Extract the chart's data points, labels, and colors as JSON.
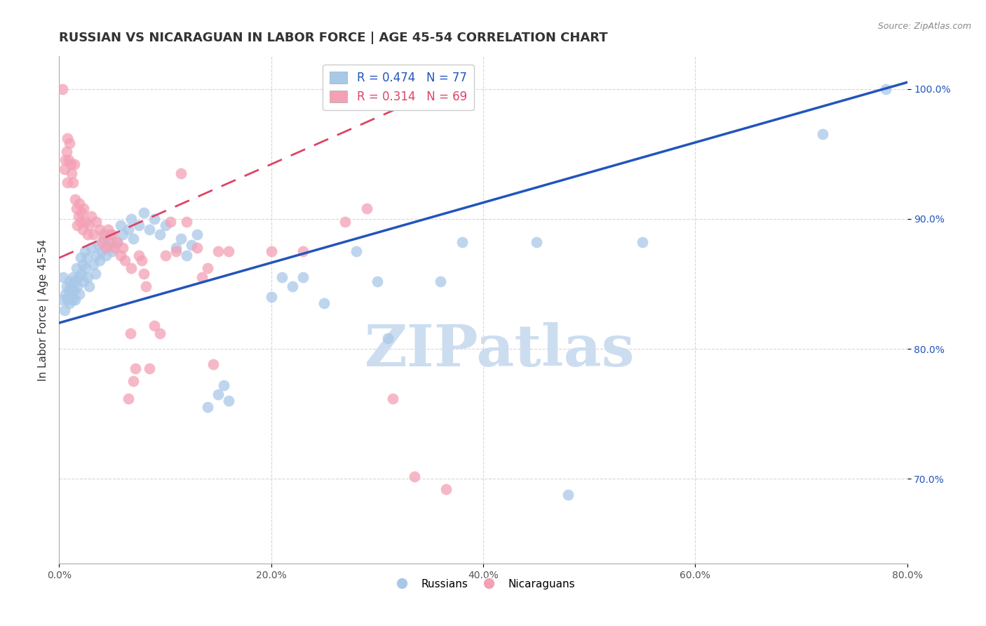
{
  "title": "RUSSIAN VS NICARAGUAN IN LABOR FORCE | AGE 45-54 CORRELATION CHART",
  "source": "Source: ZipAtlas.com",
  "ylabel": "In Labor Force | Age 45-54",
  "xlim": [
    0.0,
    0.8
  ],
  "ylim": [
    0.635,
    1.025
  ],
  "ytick_labels": [
    "70.0%",
    "80.0%",
    "90.0%",
    "100.0%"
  ],
  "ytick_values": [
    0.7,
    0.8,
    0.9,
    1.0
  ],
  "xtick_labels": [
    "0.0%",
    "20.0%",
    "40.0%",
    "60.0%",
    "80.0%"
  ],
  "xtick_values": [
    0.0,
    0.2,
    0.4,
    0.6,
    0.8
  ],
  "russian_color": "#a8c8e8",
  "nicaraguan_color": "#f4a0b5",
  "russian_line_color": "#2255bb",
  "nicaraguan_line_color": "#dd4466",
  "watermark_text": "ZIPatlas",
  "background_color": "#ffffff",
  "grid_color": "#cccccc",
  "title_fontsize": 13,
  "axis_label_fontsize": 11,
  "tick_fontsize": 10,
  "legend_fontsize": 12,
  "watermark_color": "#ccddf0",
  "watermark_fontsize": 60,
  "russian_R": "0.474",
  "russian_N": "77",
  "nicaraguan_R": "0.314",
  "nicaraguan_N": "69",
  "russian_points": [
    [
      0.003,
      0.838
    ],
    [
      0.004,
      0.855
    ],
    [
      0.005,
      0.83
    ],
    [
      0.006,
      0.842
    ],
    [
      0.007,
      0.848
    ],
    [
      0.008,
      0.838
    ],
    [
      0.009,
      0.845
    ],
    [
      0.01,
      0.852
    ],
    [
      0.01,
      0.835
    ],
    [
      0.011,
      0.842
    ],
    [
      0.012,
      0.848
    ],
    [
      0.013,
      0.855
    ],
    [
      0.013,
      0.838
    ],
    [
      0.014,
      0.845
    ],
    [
      0.015,
      0.852
    ],
    [
      0.015,
      0.838
    ],
    [
      0.016,
      0.862
    ],
    [
      0.017,
      0.848
    ],
    [
      0.018,
      0.855
    ],
    [
      0.019,
      0.842
    ],
    [
      0.02,
      0.87
    ],
    [
      0.021,
      0.858
    ],
    [
      0.022,
      0.865
    ],
    [
      0.023,
      0.852
    ],
    [
      0.024,
      0.875
    ],
    [
      0.025,
      0.862
    ],
    [
      0.026,
      0.87
    ],
    [
      0.027,
      0.855
    ],
    [
      0.028,
      0.848
    ],
    [
      0.03,
      0.878
    ],
    [
      0.032,
      0.865
    ],
    [
      0.034,
      0.858
    ],
    [
      0.035,
      0.872
    ],
    [
      0.037,
      0.88
    ],
    [
      0.038,
      0.868
    ],
    [
      0.04,
      0.875
    ],
    [
      0.042,
      0.885
    ],
    [
      0.044,
      0.872
    ],
    [
      0.046,
      0.88
    ],
    [
      0.048,
      0.888
    ],
    [
      0.05,
      0.875
    ],
    [
      0.055,
      0.882
    ],
    [
      0.058,
      0.895
    ],
    [
      0.06,
      0.888
    ],
    [
      0.065,
      0.892
    ],
    [
      0.068,
      0.9
    ],
    [
      0.07,
      0.885
    ],
    [
      0.075,
      0.895
    ],
    [
      0.08,
      0.905
    ],
    [
      0.085,
      0.892
    ],
    [
      0.09,
      0.9
    ],
    [
      0.095,
      0.888
    ],
    [
      0.1,
      0.895
    ],
    [
      0.11,
      0.878
    ],
    [
      0.115,
      0.885
    ],
    [
      0.12,
      0.872
    ],
    [
      0.125,
      0.88
    ],
    [
      0.13,
      0.888
    ],
    [
      0.14,
      0.755
    ],
    [
      0.15,
      0.765
    ],
    [
      0.155,
      0.772
    ],
    [
      0.16,
      0.76
    ],
    [
      0.2,
      0.84
    ],
    [
      0.21,
      0.855
    ],
    [
      0.22,
      0.848
    ],
    [
      0.23,
      0.855
    ],
    [
      0.25,
      0.835
    ],
    [
      0.28,
      0.875
    ],
    [
      0.3,
      0.852
    ],
    [
      0.31,
      0.808
    ],
    [
      0.36,
      0.852
    ],
    [
      0.38,
      0.882
    ],
    [
      0.45,
      0.882
    ],
    [
      0.48,
      0.688
    ],
    [
      0.55,
      0.882
    ],
    [
      0.72,
      0.965
    ],
    [
      0.78,
      1.0
    ]
  ],
  "nicaraguan_points": [
    [
      0.003,
      1.0
    ],
    [
      0.005,
      0.938
    ],
    [
      0.006,
      0.945
    ],
    [
      0.007,
      0.952
    ],
    [
      0.008,
      0.962
    ],
    [
      0.008,
      0.928
    ],
    [
      0.009,
      0.945
    ],
    [
      0.01,
      0.958
    ],
    [
      0.011,
      0.942
    ],
    [
      0.012,
      0.935
    ],
    [
      0.013,
      0.928
    ],
    [
      0.014,
      0.942
    ],
    [
      0.015,
      0.915
    ],
    [
      0.016,
      0.908
    ],
    [
      0.017,
      0.895
    ],
    [
      0.018,
      0.902
    ],
    [
      0.019,
      0.912
    ],
    [
      0.02,
      0.898
    ],
    [
      0.021,
      0.905
    ],
    [
      0.022,
      0.892
    ],
    [
      0.023,
      0.908
    ],
    [
      0.025,
      0.898
    ],
    [
      0.027,
      0.888
    ],
    [
      0.028,
      0.895
    ],
    [
      0.03,
      0.902
    ],
    [
      0.032,
      0.888
    ],
    [
      0.035,
      0.898
    ],
    [
      0.038,
      0.892
    ],
    [
      0.04,
      0.882
    ],
    [
      0.042,
      0.888
    ],
    [
      0.044,
      0.878
    ],
    [
      0.046,
      0.892
    ],
    [
      0.048,
      0.882
    ],
    [
      0.05,
      0.888
    ],
    [
      0.052,
      0.878
    ],
    [
      0.055,
      0.882
    ],
    [
      0.058,
      0.872
    ],
    [
      0.06,
      0.878
    ],
    [
      0.062,
      0.868
    ],
    [
      0.065,
      0.762
    ],
    [
      0.067,
      0.812
    ],
    [
      0.068,
      0.862
    ],
    [
      0.07,
      0.775
    ],
    [
      0.072,
      0.785
    ],
    [
      0.075,
      0.872
    ],
    [
      0.078,
      0.868
    ],
    [
      0.08,
      0.858
    ],
    [
      0.082,
      0.848
    ],
    [
      0.085,
      0.785
    ],
    [
      0.09,
      0.818
    ],
    [
      0.095,
      0.812
    ],
    [
      0.1,
      0.872
    ],
    [
      0.105,
      0.898
    ],
    [
      0.11,
      0.875
    ],
    [
      0.115,
      0.935
    ],
    [
      0.12,
      0.898
    ],
    [
      0.13,
      0.878
    ],
    [
      0.135,
      0.855
    ],
    [
      0.14,
      0.862
    ],
    [
      0.145,
      0.788
    ],
    [
      0.15,
      0.875
    ],
    [
      0.16,
      0.875
    ],
    [
      0.2,
      0.875
    ],
    [
      0.23,
      0.875
    ],
    [
      0.27,
      0.898
    ],
    [
      0.29,
      0.908
    ],
    [
      0.315,
      0.762
    ],
    [
      0.335,
      0.702
    ],
    [
      0.365,
      0.692
    ]
  ]
}
